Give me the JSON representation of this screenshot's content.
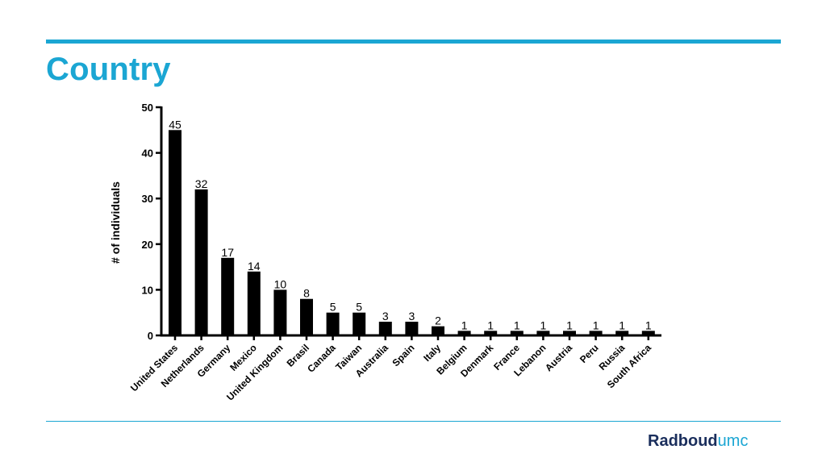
{
  "slide": {
    "title": "Country",
    "logo_main": "Radboud",
    "logo_suffix": "umc"
  },
  "colors": {
    "accent": "#1ba6d3",
    "logo_dark": "#1a2e5c",
    "bar": "#000000"
  },
  "chart_data": {
    "type": "bar",
    "title": "",
    "xlabel": "",
    "ylabel": "# of individuals",
    "ylim": [
      0,
      50
    ],
    "yticks": [
      0,
      10,
      20,
      30,
      40,
      50
    ],
    "categories": [
      "United States",
      "Netherlands",
      "Germany",
      "Mexico",
      "United Kingdom",
      "Brasil",
      "Canada",
      "Taiwan",
      "Australia",
      "Spain",
      "Italy",
      "Belgium",
      "Denmark",
      "France",
      "Lebanon",
      "Austria",
      "Peru",
      "Russia",
      "South Africa"
    ],
    "values": [
      45,
      32,
      17,
      14,
      10,
      8,
      5,
      5,
      3,
      3,
      2,
      1,
      1,
      1,
      1,
      1,
      1,
      1,
      1
    ],
    "data_labels": [
      "45",
      "32",
      "17",
      "14",
      "10",
      "8",
      "5",
      "5",
      "3",
      "3",
      "2",
      "1",
      "1",
      "1",
      "1",
      "1",
      "1",
      "1",
      "1"
    ],
    "grid": false,
    "legend": "none"
  }
}
